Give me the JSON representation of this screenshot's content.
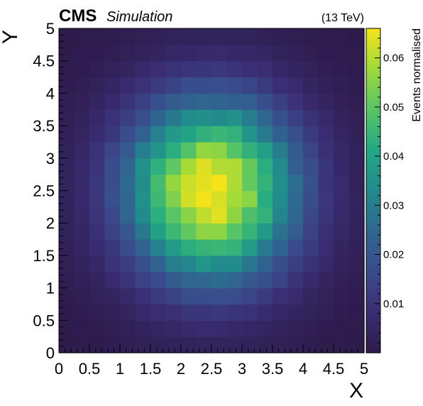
{
  "header": {
    "experiment": "CMS",
    "extra": "Simulation",
    "energy": "(13 TeV)"
  },
  "chart_data": {
    "type": "heatmap",
    "title": "",
    "xlabel": "X",
    "ylabel": "Y",
    "zlabel": "Events normalised",
    "xlim": [
      0,
      5
    ],
    "ylim": [
      0,
      5
    ],
    "zlim": [
      0,
      0.066
    ],
    "nbins_x": 20,
    "nbins_y": 20,
    "distribution": "2D Gaussian",
    "center": [
      2.5,
      2.5
    ],
    "sigma": [
      1.0,
      1.0
    ],
    "peak_value": 0.066,
    "x_ticks": [
      "0",
      "0.5",
      "1",
      "1.5",
      "2",
      "2.5",
      "3",
      "3.5",
      "4",
      "4.5",
      "5"
    ],
    "y_ticks": [
      "0",
      "0.5",
      "1",
      "1.5",
      "2",
      "2.5",
      "3",
      "3.5",
      "4",
      "4.5",
      "5"
    ],
    "z_ticks": [
      "0.01",
      "0.02",
      "0.03",
      "0.04",
      "0.05",
      "0.06"
    ],
    "colormap": [
      "#2c1b4a",
      "#3a2d73",
      "#3a4a8c",
      "#2f6690",
      "#228a8d",
      "#22a884",
      "#56c467",
      "#9ed93a",
      "#f5e31a"
    ]
  }
}
